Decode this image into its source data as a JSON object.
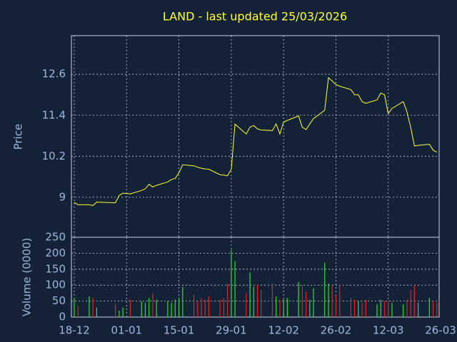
{
  "chart_data": [
    {
      "type": "line",
      "title": "LAND - last updated 25/03/2026",
      "y_label": "Price",
      "color": "#ffff33",
      "grid": true,
      "x": [
        "18-12",
        "19-12",
        "22-12",
        "23-12",
        "24-12",
        "29-12",
        "30-12",
        "31-12",
        "02-01",
        "05-01",
        "06-01",
        "07-01",
        "08-01",
        "09-01",
        "12-01",
        "13-01",
        "14-01",
        "15-01",
        "16-01",
        "19-01",
        "20-01",
        "21-01",
        "22-01",
        "23-01",
        "26-01",
        "27-01",
        "28-01",
        "29-01",
        "30-01",
        "02-02",
        "03-02",
        "04-02",
        "05-02",
        "06-02",
        "09-02",
        "10-02",
        "11-02",
        "12-02",
        "13-02",
        "16-02",
        "17-02",
        "18-02",
        "19-02",
        "20-02",
        "23-02",
        "24-02",
        "25-02",
        "26-02",
        "27-02",
        "02-03",
        "03-03",
        "04-03",
        "05-03",
        "06-03",
        "09-03",
        "10-03",
        "11-03",
        "12-03",
        "13-03",
        "16-03",
        "17-03",
        "18-03",
        "19-03",
        "20-03",
        "23-03",
        "24-03",
        "25-03"
      ],
      "values": [
        8.85,
        8.78,
        8.78,
        8.76,
        8.86,
        8.84,
        9.05,
        9.12,
        9.1,
        9.2,
        9.25,
        9.38,
        9.3,
        9.35,
        9.45,
        9.52,
        9.55,
        9.72,
        9.95,
        9.92,
        9.88,
        9.85,
        9.83,
        9.82,
        9.66,
        9.65,
        9.63,
        9.82,
        11.14,
        10.85,
        11.05,
        11.1,
        11.0,
        10.97,
        10.95,
        11.15,
        10.85,
        11.2,
        11.25,
        11.38,
        11.05,
        10.98,
        11.15,
        11.3,
        11.55,
        12.5,
        12.4,
        12.3,
        12.25,
        12.15,
        12.0,
        12.0,
        11.8,
        11.75,
        11.85,
        12.05,
        12.0,
        11.45,
        11.6,
        11.8,
        11.5,
        11.05,
        10.5,
        10.52,
        10.55,
        10.38,
        10.32
      ],
      "xlim": [
        "18-12",
        "26-03"
      ],
      "xticks": [
        "18-12",
        "01-01",
        "15-01",
        "29-01",
        "12-02",
        "26-02",
        "12-03",
        "26-03"
      ],
      "ylim": [
        7.83,
        13.73
      ],
      "yticks": [
        9,
        10.2,
        11.4,
        12.6
      ]
    },
    {
      "type": "bar",
      "y_label": "Volume (0000)",
      "up_color": "#33dd33",
      "down_color": "#dd2222",
      "grid": true,
      "x": [
        "18-12",
        "19-12",
        "22-12",
        "23-12",
        "24-12",
        "29-12",
        "30-12",
        "31-12",
        "02-01",
        "05-01",
        "06-01",
        "07-01",
        "08-01",
        "09-01",
        "12-01",
        "13-01",
        "14-01",
        "15-01",
        "16-01",
        "19-01",
        "20-01",
        "21-01",
        "22-01",
        "23-01",
        "26-01",
        "27-01",
        "28-01",
        "29-01",
        "30-01",
        "02-02",
        "03-02",
        "04-02",
        "05-02",
        "06-02",
        "09-02",
        "10-02",
        "11-02",
        "12-02",
        "13-02",
        "16-02",
        "17-02",
        "18-02",
        "19-02",
        "20-02",
        "23-02",
        "24-02",
        "25-02",
        "26-02",
        "27-02",
        "02-03",
        "03-03",
        "04-03",
        "05-03",
        "06-03",
        "09-03",
        "10-03",
        "11-03",
        "12-03",
        "13-03",
        "16-03",
        "17-03",
        "18-03",
        "19-03",
        "20-03",
        "23-03",
        "24-03",
        "25-03"
      ],
      "values": [
        60,
        35,
        65,
        60,
        30,
        40,
        20,
        30,
        55,
        50,
        45,
        60,
        75,
        55,
        50,
        45,
        55,
        60,
        95,
        70,
        50,
        60,
        55,
        65,
        55,
        60,
        105,
        210,
        175,
        75,
        140,
        95,
        100,
        85,
        105,
        65,
        55,
        55,
        60,
        110,
        100,
        80,
        55,
        90,
        170,
        105,
        100,
        70,
        100,
        60,
        55,
        50,
        45,
        55,
        40,
        55,
        50,
        50,
        45,
        40,
        55,
        85,
        100,
        45,
        60,
        50,
        45
      ],
      "xlim": [
        "18-12",
        "26-03"
      ],
      "xticks": [
        "18-12",
        "01-01",
        "15-01",
        "29-01",
        "12-02",
        "26-02",
        "12-03",
        "26-03"
      ],
      "ylim": [
        0,
        250
      ],
      "yticks": [
        0,
        50,
        100,
        150,
        200,
        250
      ]
    }
  ]
}
